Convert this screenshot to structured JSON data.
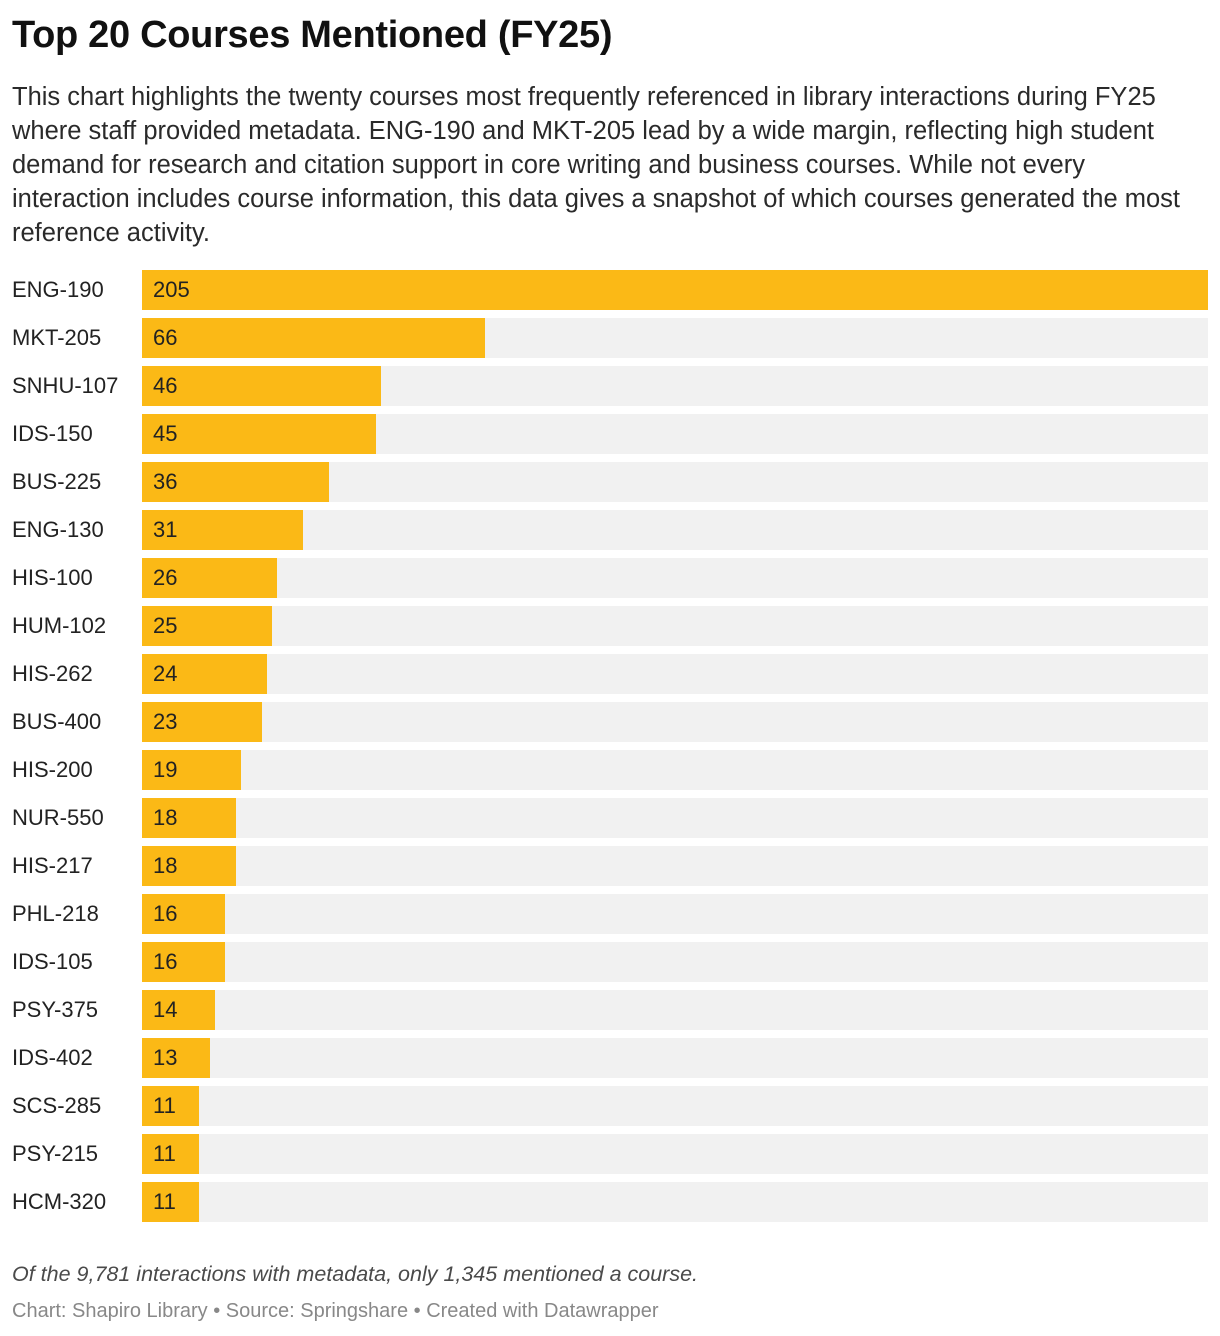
{
  "header": {
    "title": "Top 20 Courses Mentioned (FY25)",
    "description": "This chart highlights the twenty courses most frequently referenced in library interactions during FY25 where staff provided metadata. ENG-190 and MKT-205 lead by a wide margin, reflecting high student demand for research and citation support in core writing and business courses. While not every interaction includes course information, this data gives a snapshot of which courses generated the most reference activity."
  },
  "footer": {
    "note": "Of the 9,781 interactions with metadata, only 1,345 mentioned a course.",
    "credits": "Chart: Shapiro Library • Source: Springshare • Created with Datawrapper"
  },
  "colors": {
    "bar": "#fbb916",
    "track": "#f1f1f1"
  },
  "chart_data": {
    "type": "bar",
    "orientation": "horizontal",
    "title": "Top 20 Courses Mentioned (FY25)",
    "xlabel": "",
    "ylabel": "",
    "xlim": [
      0,
      205
    ],
    "grid": false,
    "categories": [
      "ENG-190",
      "MKT-205",
      "SNHU-107",
      "IDS-150",
      "BUS-225",
      "ENG-130",
      "HIS-100",
      "HUM-102",
      "HIS-262",
      "BUS-400",
      "HIS-200",
      "NUR-550",
      "HIS-217",
      "PHL-218",
      "IDS-105",
      "PSY-375",
      "IDS-402",
      "SCS-285",
      "PSY-215",
      "HCM-320"
    ],
    "values": [
      205,
      66,
      46,
      45,
      36,
      31,
      26,
      25,
      24,
      23,
      19,
      18,
      18,
      16,
      16,
      14,
      13,
      11,
      11,
      11
    ]
  }
}
